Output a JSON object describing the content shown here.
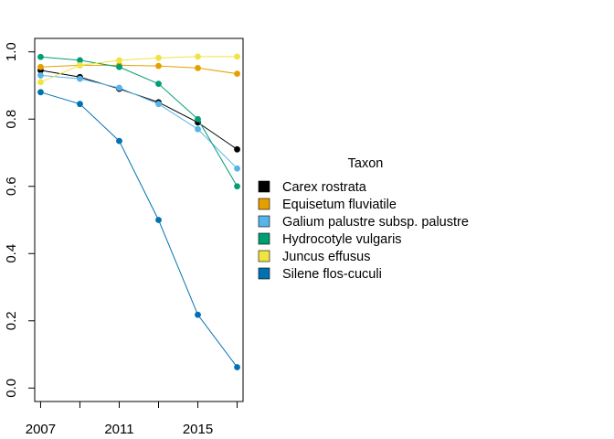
{
  "chart_data": {
    "type": "line",
    "x": [
      2007,
      2009,
      2011,
      2013,
      2015,
      2017
    ],
    "x_ticks": [
      "2007",
      "2011",
      "2015"
    ],
    "y_ticks": [
      "0.0",
      "0.2",
      "0.4",
      "0.6",
      "0.8",
      "1.0"
    ],
    "xlim": [
      2006.7,
      2017.3
    ],
    "ylim": [
      -0.04,
      1.04
    ],
    "legend": {
      "title": "Taxon",
      "position": "right"
    },
    "series": [
      {
        "name": "Carex rostrata",
        "color": "#000000",
        "values": [
          0.945,
          0.925,
          0.89,
          0.85,
          0.79,
          0.71
        ]
      },
      {
        "name": "Equisetum fluviatile",
        "color": "#E69F00",
        "values": [
          0.955,
          0.96,
          0.96,
          0.958,
          0.952,
          0.935
        ]
      },
      {
        "name": "Galium palustre subsp. palustre",
        "color": "#56B4E9",
        "values": [
          0.93,
          0.92,
          0.893,
          0.845,
          0.77,
          0.653
        ]
      },
      {
        "name": "Hydrocotyle vulgaris",
        "color": "#009E73",
        "values": [
          0.985,
          0.975,
          0.955,
          0.905,
          0.8,
          0.6
        ]
      },
      {
        "name": "Juncus effusus",
        "color": "#F0E442",
        "values": [
          0.91,
          0.96,
          0.975,
          0.982,
          0.986,
          0.986
        ]
      },
      {
        "name": "Silene flos-cuculi",
        "color": "#0072B2",
        "values": [
          0.88,
          0.845,
          0.735,
          0.5,
          0.218,
          0.062
        ]
      }
    ]
  }
}
